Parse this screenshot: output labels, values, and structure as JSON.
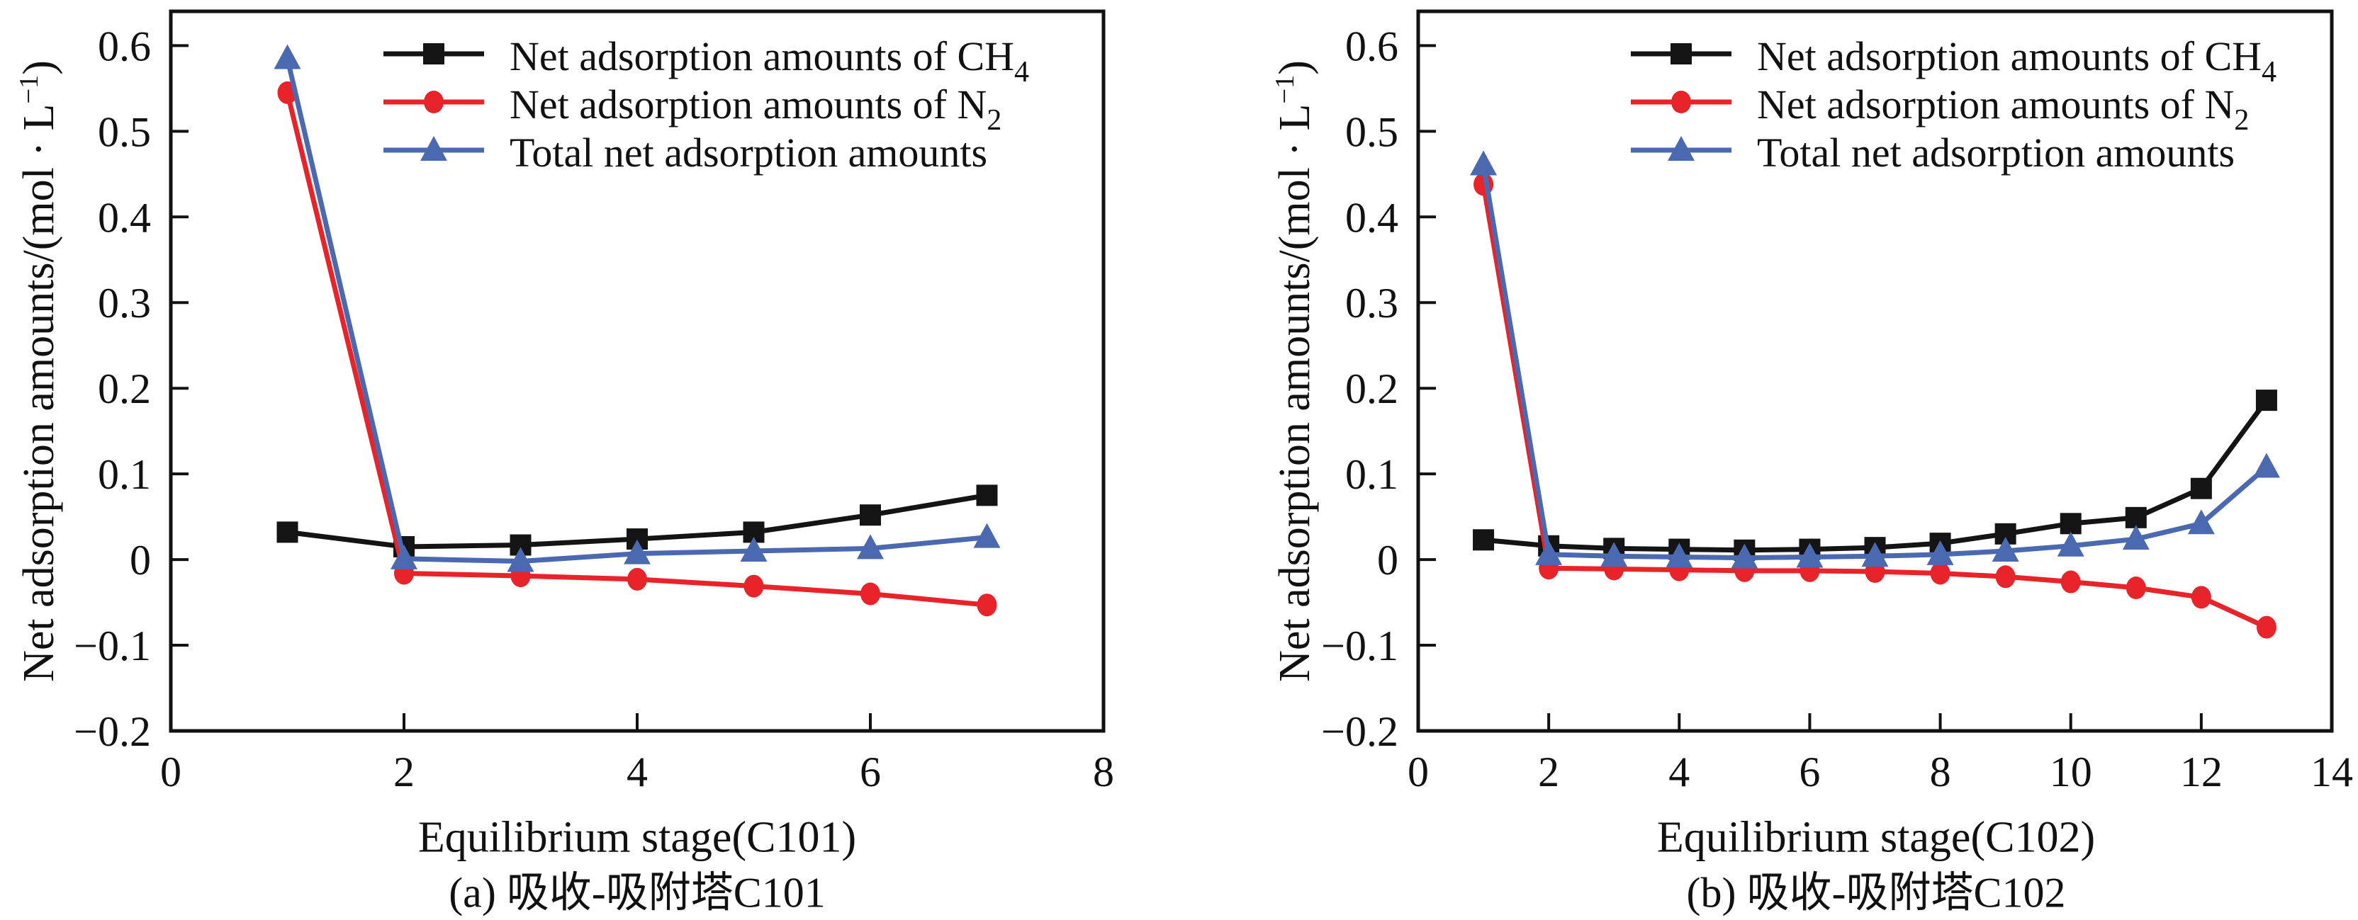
{
  "figure": {
    "background": "#ffffff",
    "text_color": "#111111"
  },
  "y_label": {
    "pre": "Net adsorption amounts/(mol · L",
    "sup": "−1",
    "post": ")"
  },
  "chart_data": [
    {
      "type": "line",
      "title": "(a) 吸收-吸附塔C101",
      "xlabel": "Equilibrium stage(C101)",
      "ylabel": "Net adsorption amounts/(mol·L⁻¹)",
      "xlim": [
        0,
        8
      ],
      "ylim": [
        -0.2,
        0.64
      ],
      "xticks": [
        0,
        2,
        4,
        6,
        8
      ],
      "yticks": [
        -0.2,
        -0.1,
        0,
        0.1,
        0.2,
        0.3,
        0.4,
        0.5,
        0.6
      ],
      "grid": false,
      "legend_position": "upper-left-inside",
      "x": [
        1,
        2,
        3,
        4,
        5,
        6,
        7
      ],
      "series": [
        {
          "id": "ch4",
          "label": "Net adsorption amounts of CH",
          "label_sub": "4",
          "color": "#141414",
          "marker": "square",
          "values": [
            0.032,
            0.015,
            0.017,
            0.024,
            0.032,
            0.052,
            0.075
          ]
        },
        {
          "id": "n2",
          "label": "Net adsorption amounts of N",
          "label_sub": "2",
          "color": "#e8232a",
          "marker": "circle",
          "values": [
            0.545,
            -0.016,
            -0.019,
            -0.023,
            -0.031,
            -0.04,
            -0.053
          ]
        },
        {
          "id": "total",
          "label": "Total net adsorption amounts",
          "label_sub": "",
          "color": "#4a69b0",
          "marker": "triangle",
          "values": [
            0.585,
            0.001,
            -0.002,
            0.007,
            0.01,
            0.013,
            0.026
          ]
        }
      ]
    },
    {
      "type": "line",
      "title": "(b) 吸收-吸附塔C102",
      "xlabel": "Equilibrium stage(C102)",
      "ylabel": "Net adsorption amounts/(mol·L⁻¹)",
      "xlim": [
        0,
        14
      ],
      "ylim": [
        -0.2,
        0.64
      ],
      "xticks": [
        0,
        2,
        4,
        6,
        8,
        10,
        12,
        14
      ],
      "yticks": [
        -0.2,
        -0.1,
        0,
        0.1,
        0.2,
        0.3,
        0.4,
        0.5,
        0.6
      ],
      "grid": false,
      "legend_position": "upper-left-inside",
      "x": [
        1,
        2,
        3,
        4,
        5,
        6,
        7,
        8,
        9,
        10,
        11,
        12,
        13
      ],
      "series": [
        {
          "id": "ch4",
          "label": "Net adsorption amounts of CH",
          "label_sub": "4",
          "color": "#141414",
          "marker": "square",
          "values": [
            0.023,
            0.016,
            0.013,
            0.012,
            0.011,
            0.012,
            0.014,
            0.019,
            0.03,
            0.042,
            0.049,
            0.083,
            0.186
          ]
        },
        {
          "id": "n2",
          "label": "Net adsorption amounts of N",
          "label_sub": "2",
          "color": "#e8232a",
          "marker": "circle",
          "values": [
            0.438,
            -0.01,
            -0.011,
            -0.012,
            -0.013,
            -0.013,
            -0.014,
            -0.016,
            -0.02,
            -0.026,
            -0.033,
            -0.044,
            -0.079
          ]
        },
        {
          "id": "total",
          "label": "Total net adsorption amounts",
          "label_sub": "",
          "color": "#4a69b0",
          "marker": "triangle",
          "values": [
            0.461,
            0.006,
            0.004,
            0.003,
            0.002,
            0.003,
            0.004,
            0.006,
            0.01,
            0.016,
            0.024,
            0.042,
            0.108
          ]
        }
      ]
    }
  ]
}
